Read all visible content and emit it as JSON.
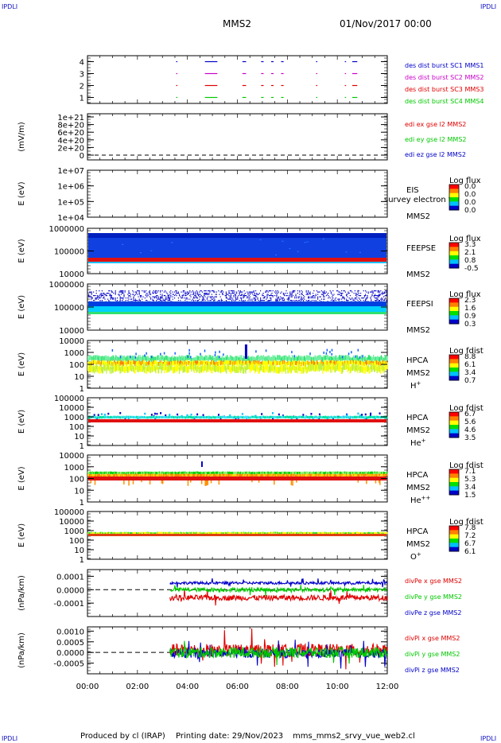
{
  "corner_labels": {
    "top_left": "IPDLI",
    "top_right": "IPDLI",
    "bottom_left": "IPDLI",
    "bottom_right": "IPDLI"
  },
  "header": {
    "spacecraft": "MMS2",
    "datetime": "01/Nov/2017 00:00"
  },
  "footer": {
    "produced_by": "Produced by cl (IRAP)",
    "printing_date": "Printing date: 29/Nov/2023",
    "script": "mms_mms2_srvy_vue_web2.cl"
  },
  "colors": {
    "blue": "#0000c8",
    "magenta": "#c800c8",
    "red": "#e00000",
    "green": "#00c800",
    "axis": "#000000"
  },
  "chart_data": [
    {
      "type": "scatter",
      "id": "burst",
      "ylabel": "",
      "ylim": [
        0.5,
        4.5
      ],
      "yticks": [
        "1",
        "2",
        "3",
        "4"
      ],
      "series": [
        {
          "name": "des dist burst SC1 MMS1",
          "color": "#0000c8",
          "y": 4
        },
        {
          "name": "des dist burst SC2 MMS2",
          "color": "#c800c8",
          "y": 3
        },
        {
          "name": "des dist burst SC3 MMS3",
          "color": "#e00000",
          "y": 2
        },
        {
          "name": "des dist burst SC4 MMS4",
          "color": "#00c800",
          "y": 1
        }
      ],
      "intervals_hours": [
        [
          3.55,
          3.6
        ],
        [
          4.7,
          5.2
        ],
        [
          6.2,
          6.35
        ],
        [
          6.95,
          7.05
        ],
        [
          7.35,
          7.45
        ],
        [
          7.75,
          7.85
        ],
        [
          9.15,
          9.2
        ],
        [
          10.3,
          10.35
        ],
        [
          10.6,
          10.8
        ]
      ]
    },
    {
      "type": "line",
      "id": "edi",
      "ylabel": "(mV/m)",
      "yticks": [
        "1e+21",
        "8e+20",
        "6e+20",
        "4e+20",
        "2e+20",
        "0"
      ],
      "series": [
        {
          "name": "edi ex gse l2 MMS2",
          "color": "#e00000"
        },
        {
          "name": "edi ey gse l2 MMS2",
          "color": "#00c800"
        },
        {
          "name": "edi ez gse l2 MMS2",
          "color": "#0000c8"
        }
      ]
    },
    {
      "type": "heatmap",
      "id": "eis",
      "ylabel": "E (eV)",
      "yticks": [
        "1e+07",
        "1e+06",
        "1e+05",
        "1e+04"
      ],
      "instrument": "EIS",
      "overlay_text": "survey electron to",
      "spacecraft": "MMS2",
      "colorbar": {
        "title": "Log flux",
        "ticks": [
          "0.0",
          "0.0",
          "0.0",
          "0.0"
        ]
      }
    },
    {
      "type": "heatmap",
      "id": "feepse",
      "ylabel": "E (eV)",
      "yticks": [
        "1000000",
        "100000",
        "10000"
      ],
      "instrument": "FEEPSE",
      "spacecraft": "MMS2",
      "colorbar": {
        "title": "Log flux",
        "ticks": [
          "3.3",
          "2.1",
          "0.8",
          "-0.5"
        ]
      }
    },
    {
      "type": "heatmap",
      "id": "feepsi",
      "ylabel": "E (eV)",
      "yticks": [
        "1000000",
        "100000",
        "10000"
      ],
      "instrument": "FEEPSI",
      "spacecraft": "MMS2",
      "colorbar": {
        "title": "Log flux",
        "ticks": [
          "2.3",
          "1.6",
          "0.9",
          "0.3"
        ]
      }
    },
    {
      "type": "heatmap",
      "id": "hpca_h",
      "ylabel": "E (eV)",
      "yticks": [
        "10000",
        "1000",
        "100",
        "10",
        "1"
      ],
      "instrument": "HPCA",
      "spacecraft": "MMS2",
      "species": "H+",
      "colorbar": {
        "title": "Log fdist",
        "ticks": [
          "8.8",
          "6.1",
          "3.4",
          "0.7"
        ]
      }
    },
    {
      "type": "heatmap",
      "id": "hpca_he",
      "ylabel": "E (eV)",
      "yticks": [
        "100000",
        "10000",
        "1000",
        "100",
        "10",
        "1"
      ],
      "instrument": "HPCA",
      "spacecraft": "MMS2",
      "species": "He+",
      "colorbar": {
        "title": "Log fdist",
        "ticks": [
          "6.7",
          "5.6",
          "4.6",
          "3.5"
        ]
      }
    },
    {
      "type": "heatmap",
      "id": "hpca_hepp",
      "ylabel": "E (eV)",
      "yticks": [
        "10000",
        "1000",
        "100",
        "10",
        "1"
      ],
      "instrument": "HPCA",
      "spacecraft": "MMS2",
      "species": "He++",
      "colorbar": {
        "title": "Log fdist",
        "ticks": [
          "7.1",
          "5.3",
          "3.4",
          "1.5"
        ]
      }
    },
    {
      "type": "heatmap",
      "id": "hpca_o",
      "ylabel": "E (eV)",
      "yticks": [
        "100000",
        "10000",
        "1000",
        "100",
        "10",
        "1"
      ],
      "instrument": "HPCA",
      "spacecraft": "MMS2",
      "species": "O+",
      "colorbar": {
        "title": "Log fdist",
        "ticks": [
          "7.8",
          "7.2",
          "6.7",
          "6.1"
        ]
      }
    },
    {
      "type": "line",
      "id": "divpe",
      "ylabel": "(nPa/km)",
      "yticks": [
        "0.0001",
        "0.0000",
        "-0.0001"
      ],
      "ylim": [
        -0.0002,
        0.00015
      ],
      "data_start_hour": 3.3,
      "series": [
        {
          "name": "divPe x gse MMS2",
          "color": "#e00000",
          "level": -6e-05,
          "noise": 2e-05
        },
        {
          "name": "divPe y gse MMS2",
          "color": "#00c800",
          "level": 0.0,
          "noise": 1.5e-05
        },
        {
          "name": "divPe z gse MMS2",
          "color": "#0000c8",
          "level": 5e-05,
          "noise": 1e-05
        }
      ]
    },
    {
      "type": "line",
      "id": "divpi",
      "ylabel": "(nPa/km)",
      "yticks": [
        "0.0010",
        "0.0005",
        "0.0000",
        "-0.0005"
      ],
      "ylim": [
        -0.001,
        0.0012
      ],
      "data_start_hour": 3.3,
      "series": [
        {
          "name": "divPi x gse MMS2",
          "color": "#e00000",
          "level": 0.0001,
          "noise": 0.0003
        },
        {
          "name": "divPi y gse MMS2",
          "color": "#00c800",
          "level": 0.0,
          "noise": 0.00025
        },
        {
          "name": "divPi z gse MMS2",
          "color": "#0000c8",
          "level": -5e-05,
          "noise": 0.0002
        }
      ]
    }
  ],
  "x_axis": {
    "ticks": [
      "00:00",
      "02:00",
      "04:00",
      "06:00",
      "08:00",
      "10:00",
      "12:00"
    ],
    "range_hours": [
      0,
      12
    ]
  }
}
